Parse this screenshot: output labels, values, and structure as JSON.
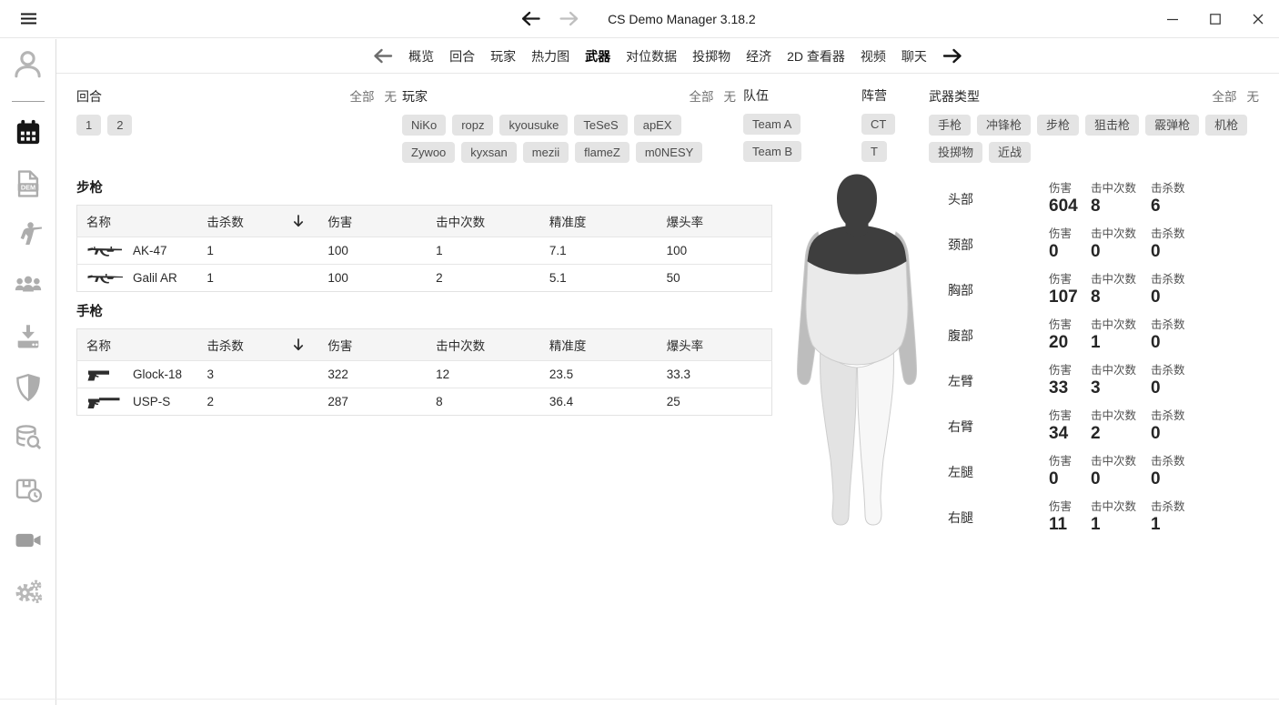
{
  "titlebar": {
    "title": "CS Demo Manager 3.18.2",
    "window_controls": [
      "minimize",
      "maximize",
      "close"
    ]
  },
  "colors": {
    "active_icon": "#161616",
    "inactive_icon": "#adadad",
    "chip_bg": "#e4e4e4",
    "hit_region_dark": "#3e3e3e",
    "hit_region_medium": "#bdbdbd",
    "hit_region_light": "#eaeaea"
  },
  "sidebar": {
    "icons": [
      {
        "name": "user-icon",
        "active": false
      },
      {
        "name": "matches-calendar-icon",
        "active": true
      },
      {
        "name": "demos-file-icon",
        "active": false
      },
      {
        "name": "players-icon",
        "active": false
      },
      {
        "name": "teams-icon",
        "active": false
      },
      {
        "name": "downloads-icon",
        "active": false
      },
      {
        "name": "ban-shield-icon",
        "active": false
      },
      {
        "name": "search-database-icon",
        "active": false
      },
      {
        "name": "pending-analyses-icon",
        "active": false
      },
      {
        "name": "videos-icon",
        "active": false
      },
      {
        "name": "settings-icon",
        "active": false
      }
    ]
  },
  "tabs": {
    "items": [
      "概览",
      "回合",
      "玩家",
      "热力图",
      "武器",
      "对位数据",
      "投掷物",
      "经济",
      "2D 查看器",
      "视频",
      "聊天"
    ],
    "active": "武器"
  },
  "filters": {
    "all_label": "全部",
    "none_label": "无",
    "groups": [
      {
        "id": "rounds",
        "label": "回合",
        "options": [
          "1",
          "2"
        ],
        "show_links": true
      },
      {
        "id": "players",
        "label": "玩家",
        "options": [
          "NiKo",
          "ropz",
          "kyousuke",
          "TeSeS",
          "apEX",
          "Zywoo",
          "kyxsan",
          "mezii",
          "flameZ",
          "m0NESY"
        ],
        "show_links": true
      },
      {
        "id": "teams",
        "label": "队伍",
        "options": [
          "Team A",
          "Team B"
        ],
        "show_links": false
      },
      {
        "id": "sides",
        "label": "阵营",
        "options": [
          "CT",
          "T"
        ],
        "show_links": false
      },
      {
        "id": "weapon_types",
        "label": "武器类型",
        "options": [
          "手枪",
          "冲锋枪",
          "步枪",
          "狙击枪",
          "霰弹枪",
          "机枪",
          "投掷物",
          "近战"
        ],
        "show_links": true
      }
    ]
  },
  "weapon_tables": [
    {
      "title": "步枪",
      "columns": [
        "名称",
        "击杀数",
        "伤害",
        "击中次数",
        "精准度",
        "爆头率"
      ],
      "sorted_column": "击杀数",
      "rows": [
        {
          "icon": "ak47-icon",
          "name": "AK-47",
          "values": [
            "1",
            "100",
            "1",
            "7.1",
            "100"
          ]
        },
        {
          "icon": "galil-icon",
          "name": "Galil AR",
          "values": [
            "1",
            "100",
            "2",
            "5.1",
            "50"
          ]
        }
      ]
    },
    {
      "title": "手枪",
      "columns": [
        "名称",
        "击杀数",
        "伤害",
        "击中次数",
        "精准度",
        "爆头率"
      ],
      "sorted_column": "击杀数",
      "rows": [
        {
          "icon": "glock-icon",
          "name": "Glock-18",
          "values": [
            "3",
            "322",
            "12",
            "23.5",
            "33.3"
          ]
        },
        {
          "icon": "usp-icon",
          "name": "USP-S",
          "values": [
            "2",
            "287",
            "8",
            "36.4",
            "25"
          ]
        }
      ]
    }
  ],
  "hit_regions": {
    "stat_labels": {
      "damage": "伤害",
      "hits": "击中次数",
      "kills": "击杀数"
    },
    "parts": [
      {
        "label": "头部",
        "damage": "604",
        "hits": "8",
        "kills": "6"
      },
      {
        "label": "颈部",
        "damage": "0",
        "hits": "0",
        "kills": "0"
      },
      {
        "label": "胸部",
        "damage": "107",
        "hits": "8",
        "kills": "0"
      },
      {
        "label": "腹部",
        "damage": "20",
        "hits": "1",
        "kills": "0"
      },
      {
        "label": "左臂",
        "damage": "33",
        "hits": "3",
        "kills": "0"
      },
      {
        "label": "右臂",
        "damage": "34",
        "hits": "2",
        "kills": "0"
      },
      {
        "label": "左腿",
        "damage": "0",
        "hits": "0",
        "kills": "0"
      },
      {
        "label": "右腿",
        "damage": "11",
        "hits": "1",
        "kills": "1"
      }
    ]
  }
}
